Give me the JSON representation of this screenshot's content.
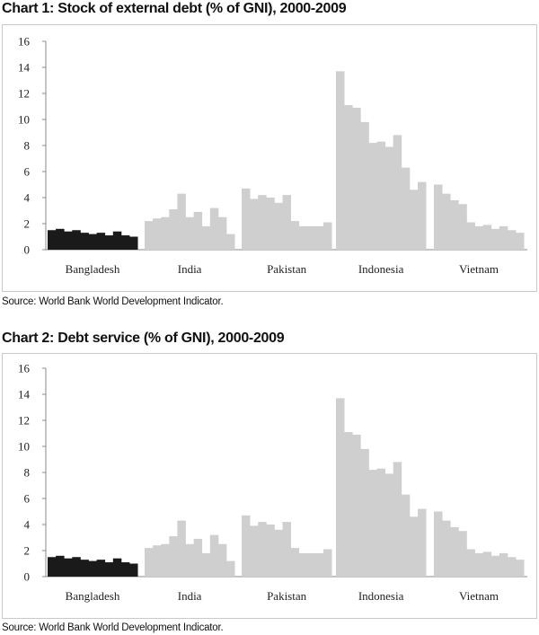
{
  "charts": [
    {
      "title": "Chart 1: Stock of external debt (% of GNI), 2000-2009",
      "source": "Source: World Bank World Development Indicator."
    },
    {
      "title": "Chart 2: Debt service (% of GNI), 2000-2009",
      "source": "Source: World Bank World Development Indicator."
    }
  ],
  "colors": {
    "highlight": "#1a1a1a",
    "others": "#cfcfcf",
    "axis": "#8a8a8a"
  },
  "chart_data": [
    {
      "type": "bar",
      "title": "Chart 1: Stock of external debt (% of GNI), 2000-2009",
      "ylim": [
        0,
        16
      ],
      "yticks": [
        0,
        2,
        4,
        6,
        8,
        10,
        12,
        14,
        16
      ],
      "grid": false,
      "categories": [
        "Bangladesh",
        "India",
        "Pakistan",
        "Indonesia",
        "Vietnam"
      ],
      "highlight": "Bangladesh",
      "values": {
        "Bangladesh": [
          1.5,
          1.6,
          1.4,
          1.5,
          1.3,
          1.2,
          1.3,
          1.1,
          1.4,
          1.1,
          1.0
        ],
        "India": [
          2.2,
          2.4,
          2.5,
          3.1,
          4.3,
          2.5,
          2.9,
          1.8,
          3.2,
          2.5,
          1.2
        ],
        "Pakistan": [
          4.7,
          3.9,
          4.2,
          4.0,
          3.6,
          4.2,
          2.2,
          1.8,
          1.8,
          1.8,
          2.1
        ],
        "Indonesia": [
          13.7,
          11.1,
          10.9,
          9.8,
          8.2,
          8.3,
          7.9,
          8.8,
          6.3,
          4.6,
          5.2
        ],
        "Vietnam": [
          5.0,
          4.3,
          3.8,
          3.5,
          2.1,
          1.8,
          1.9,
          1.6,
          1.8,
          1.5,
          1.3
        ]
      }
    },
    {
      "type": "bar",
      "title": "Chart 2: Debt service (% of GNI), 2000-2009",
      "ylim": [
        0,
        16
      ],
      "yticks": [
        0,
        2,
        4,
        6,
        8,
        10,
        12,
        14,
        16
      ],
      "grid": false,
      "categories": [
        "Bangladesh",
        "India",
        "Pakistan",
        "Indonesia",
        "Vietnam"
      ],
      "highlight": "Bangladesh",
      "values": {
        "Bangladesh": [
          1.5,
          1.6,
          1.4,
          1.5,
          1.3,
          1.2,
          1.3,
          1.1,
          1.4,
          1.1,
          1.0
        ],
        "India": [
          2.2,
          2.4,
          2.5,
          3.1,
          4.3,
          2.5,
          2.9,
          1.8,
          3.2,
          2.5,
          1.2
        ],
        "Pakistan": [
          4.7,
          3.9,
          4.2,
          4.0,
          3.6,
          4.2,
          2.2,
          1.8,
          1.8,
          1.8,
          2.1
        ],
        "Indonesia": [
          13.7,
          11.1,
          10.9,
          9.8,
          8.2,
          8.3,
          7.9,
          8.8,
          6.3,
          4.6,
          5.2
        ],
        "Vietnam": [
          5.0,
          4.3,
          3.8,
          3.5,
          2.1,
          1.8,
          1.9,
          1.6,
          1.8,
          1.5,
          1.3
        ]
      }
    }
  ]
}
